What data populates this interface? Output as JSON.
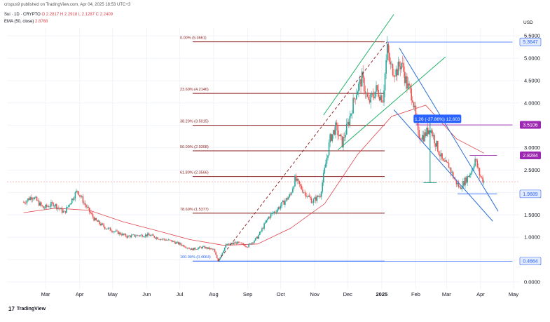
{
  "header": {
    "published": "crispus9 published on TradingView.com, Apr 04, 2025 18:53 UTC+3",
    "symbol": "Sui · 1D · CRYPTO",
    "ohlc": "O 2.2817  H 2.2918  L 2.1287  C 2.2409",
    "ema_label": "EMA (50, close)",
    "ema_value": "2.8768"
  },
  "footer": {
    "logo": "17",
    "brand": "TradingView"
  },
  "colors": {
    "up": "#26a69a",
    "down": "#ef5350",
    "ema": "#e0434b",
    "fib": "#8b1a1a",
    "channel_up": "#26b36b",
    "channel_down": "#2a6fd6",
    "level_blue": "#2962ff",
    "level_purple": "#9c27b0"
  },
  "chart_data": {
    "type": "candlestick",
    "currency": "USD",
    "ylim": [
      0,
      5.6
    ],
    "y_ticks": [
      "0.0000",
      "0.5000",
      "1.0000",
      "1.5000",
      "2.0000",
      "2.5000",
      "3.0000",
      "3.5000",
      "4.0000",
      "4.5000",
      "5.0000",
      "5.5000"
    ],
    "x_ticks": [
      "Mar",
      "Apr",
      "May",
      "Jun",
      "Jul",
      "Aug",
      "Sep",
      "Oct",
      "Nov",
      "Dec",
      "2025",
      "Feb",
      "Mar",
      "Apr",
      "May"
    ],
    "fib_levels": [
      {
        "label": "0.00% (5.3661)",
        "price": 5.3661
      },
      {
        "label": "23.60% (4.2146)",
        "price": 4.2146
      },
      {
        "label": "38.20% (3.5015)",
        "price": 3.5015
      },
      {
        "label": "50.00% (2.9308)",
        "price": 2.9308
      },
      {
        "label": "61.80% (2.3566)",
        "price": 2.3566
      },
      {
        "label": "78.60% (1.5377)",
        "price": 1.5377
      },
      {
        "label": "100.00% (0.4664)",
        "price": 0.4664
      }
    ],
    "price_badges": [
      {
        "label": "5.3647",
        "price": 5.3647,
        "style": "blue"
      },
      {
        "label": "3.5106",
        "price": 3.5106,
        "style": "purple"
      },
      {
        "label": "2.8284",
        "price": 2.8284,
        "style": "purple"
      },
      {
        "label": "1.9689",
        "price": 1.9689,
        "style": "blue"
      },
      {
        "label": "0.4664",
        "price": 0.4664,
        "style": "blue"
      }
    ],
    "measure_label": "1.26 (-37.86%) 12,603",
    "close_path": [
      {
        "date": "2024-02-10",
        "close": 1.78
      },
      {
        "date": "2024-02-18",
        "close": 1.92
      },
      {
        "date": "2024-02-28",
        "close": 1.65
      },
      {
        "date": "2024-03-08",
        "close": 1.75
      },
      {
        "date": "2024-03-18",
        "close": 1.55
      },
      {
        "date": "2024-03-25",
        "close": 1.85
      },
      {
        "date": "2024-03-30",
        "close": 2.05
      },
      {
        "date": "2024-04-06",
        "close": 1.72
      },
      {
        "date": "2024-04-15",
        "close": 1.38
      },
      {
        "date": "2024-04-24",
        "close": 1.22
      },
      {
        "date": "2024-05-04",
        "close": 1.12
      },
      {
        "date": "2024-05-14",
        "close": 1.02
      },
      {
        "date": "2024-05-24",
        "close": 1.04
      },
      {
        "date": "2024-06-03",
        "close": 1.05
      },
      {
        "date": "2024-06-13",
        "close": 0.97
      },
      {
        "date": "2024-06-23",
        "close": 0.92
      },
      {
        "date": "2024-07-03",
        "close": 0.83
      },
      {
        "date": "2024-07-12",
        "close": 0.73
      },
      {
        "date": "2024-07-22",
        "close": 0.78
      },
      {
        "date": "2024-08-01",
        "close": 0.72
      },
      {
        "date": "2024-08-05",
        "close": 0.47
      },
      {
        "date": "2024-08-12",
        "close": 0.82
      },
      {
        "date": "2024-08-22",
        "close": 0.88
      },
      {
        "date": "2024-09-01",
        "close": 0.8
      },
      {
        "date": "2024-09-10",
        "close": 1.0
      },
      {
        "date": "2024-09-20",
        "close": 1.45
      },
      {
        "date": "2024-09-30",
        "close": 1.68
      },
      {
        "date": "2024-10-10",
        "close": 1.95
      },
      {
        "date": "2024-10-14",
        "close": 2.3
      },
      {
        "date": "2024-10-22",
        "close": 2.02
      },
      {
        "date": "2024-10-30",
        "close": 1.8
      },
      {
        "date": "2024-11-06",
        "close": 1.95
      },
      {
        "date": "2024-11-10",
        "close": 2.5
      },
      {
        "date": "2024-11-15",
        "close": 3.2
      },
      {
        "date": "2024-11-20",
        "close": 3.45
      },
      {
        "date": "2024-11-26",
        "close": 3.1
      },
      {
        "date": "2024-12-02",
        "close": 3.6
      },
      {
        "date": "2024-12-08",
        "close": 4.2
      },
      {
        "date": "2024-12-14",
        "close": 4.55
      },
      {
        "date": "2024-12-20",
        "close": 4.0
      },
      {
        "date": "2024-12-27",
        "close": 4.3
      },
      {
        "date": "2025-01-02",
        "close": 4.1
      },
      {
        "date": "2025-01-06",
        "close": 5.2
      },
      {
        "date": "2025-01-09",
        "close": 4.8
      },
      {
        "date": "2025-01-14",
        "close": 4.7
      },
      {
        "date": "2025-01-19",
        "close": 4.9
      },
      {
        "date": "2025-01-24",
        "close": 4.4
      },
      {
        "date": "2025-01-29",
        "close": 4.15
      },
      {
        "date": "2025-02-03",
        "close": 3.3
      },
      {
        "date": "2025-02-08",
        "close": 3.25
      },
      {
        "date": "2025-02-14",
        "close": 3.45
      },
      {
        "date": "2025-02-20",
        "close": 3.05
      },
      {
        "date": "2025-02-26",
        "close": 2.65
      },
      {
        "date": "2025-03-03",
        "close": 2.6
      },
      {
        "date": "2025-03-08",
        "close": 2.3
      },
      {
        "date": "2025-03-13",
        "close": 2.1
      },
      {
        "date": "2025-03-19",
        "close": 2.3
      },
      {
        "date": "2025-03-24",
        "close": 2.5
      },
      {
        "date": "2025-03-27",
        "close": 2.75
      },
      {
        "date": "2025-03-31",
        "close": 2.4
      },
      {
        "date": "2025-04-04",
        "close": 2.24
      }
    ],
    "ema_path": [
      {
        "date": "2024-02-10",
        "value": 1.55
      },
      {
        "date": "2024-03-10",
        "value": 1.65
      },
      {
        "date": "2024-04-10",
        "value": 1.6
      },
      {
        "date": "2024-05-10",
        "value": 1.35
      },
      {
        "date": "2024-06-10",
        "value": 1.15
      },
      {
        "date": "2024-07-10",
        "value": 0.95
      },
      {
        "date": "2024-08-10",
        "value": 0.82
      },
      {
        "date": "2024-09-10",
        "value": 0.85
      },
      {
        "date": "2024-10-10",
        "value": 1.2
      },
      {
        "date": "2024-11-10",
        "value": 1.75
      },
      {
        "date": "2024-12-10",
        "value": 2.85
      },
      {
        "date": "2025-01-10",
        "value": 3.7
      },
      {
        "date": "2025-02-10",
        "value": 3.95
      },
      {
        "date": "2025-03-10",
        "value": 3.2
      },
      {
        "date": "2025-04-04",
        "value": 2.88
      }
    ]
  }
}
